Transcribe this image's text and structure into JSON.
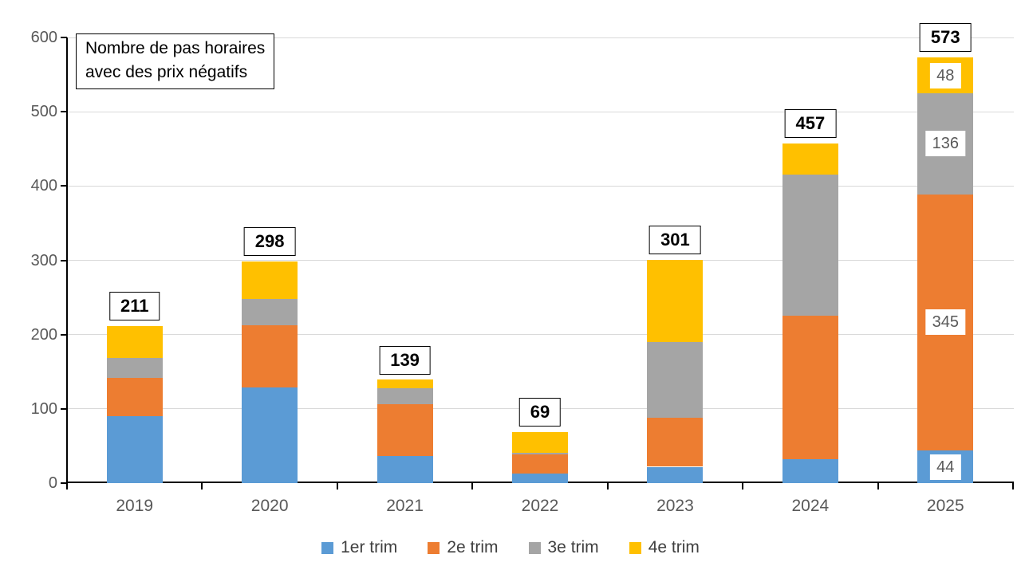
{
  "chart_title": {
    "line1": "Nombre de pas horaires",
    "line2": "avec des prix négatifs"
  },
  "chart_data": {
    "type": "bar",
    "stacked": true,
    "title": "Nombre de pas horaires avec des prix négatifs",
    "categories": [
      "2019",
      "2020",
      "2021",
      "2022",
      "2023",
      "2024",
      "2025"
    ],
    "series": [
      {
        "name": "1er trim",
        "color": "#5B9BD5",
        "values": [
          90,
          129,
          36,
          13,
          22,
          32,
          44
        ]
      },
      {
        "name": "2e trim",
        "color": "#ED7D31",
        "values": [
          52,
          84,
          70,
          26,
          66,
          193,
          345
        ]
      },
      {
        "name": "3e trim",
        "color": "#A5A5A5",
        "values": [
          27,
          35,
          22,
          2,
          102,
          190,
          136
        ]
      },
      {
        "name": "4e trim",
        "color": "#FFC000",
        "values": [
          42,
          50,
          11,
          28,
          111,
          42,
          48
        ]
      }
    ],
    "totals": [
      211,
      298,
      139,
      69,
      301,
      457,
      573
    ],
    "total_labels": [
      "211",
      "298",
      "139",
      "69",
      "301",
      "457",
      "573"
    ],
    "inner_labels": {
      "category": "2025",
      "values": [
        "44",
        "345",
        "136",
        "48"
      ]
    },
    "ylim": [
      0,
      600
    ],
    "yticks": [
      0,
      100,
      200,
      300,
      400,
      500,
      600
    ],
    "ytick_labels": [
      "0",
      "100",
      "200",
      "300",
      "400",
      "500",
      "600"
    ],
    "grid": true,
    "legend_position": "bottom"
  },
  "colors": {
    "bar_blue": "#5B9BD5",
    "bar_orange": "#ED7D31",
    "bar_gray": "#A5A5A5",
    "bar_yellow": "#FFC000",
    "gridline": "#D9D9D9",
    "axis_line": "#000000",
    "axis_text": "#595959",
    "legend_text": "#404040",
    "label_text": "#000000"
  }
}
